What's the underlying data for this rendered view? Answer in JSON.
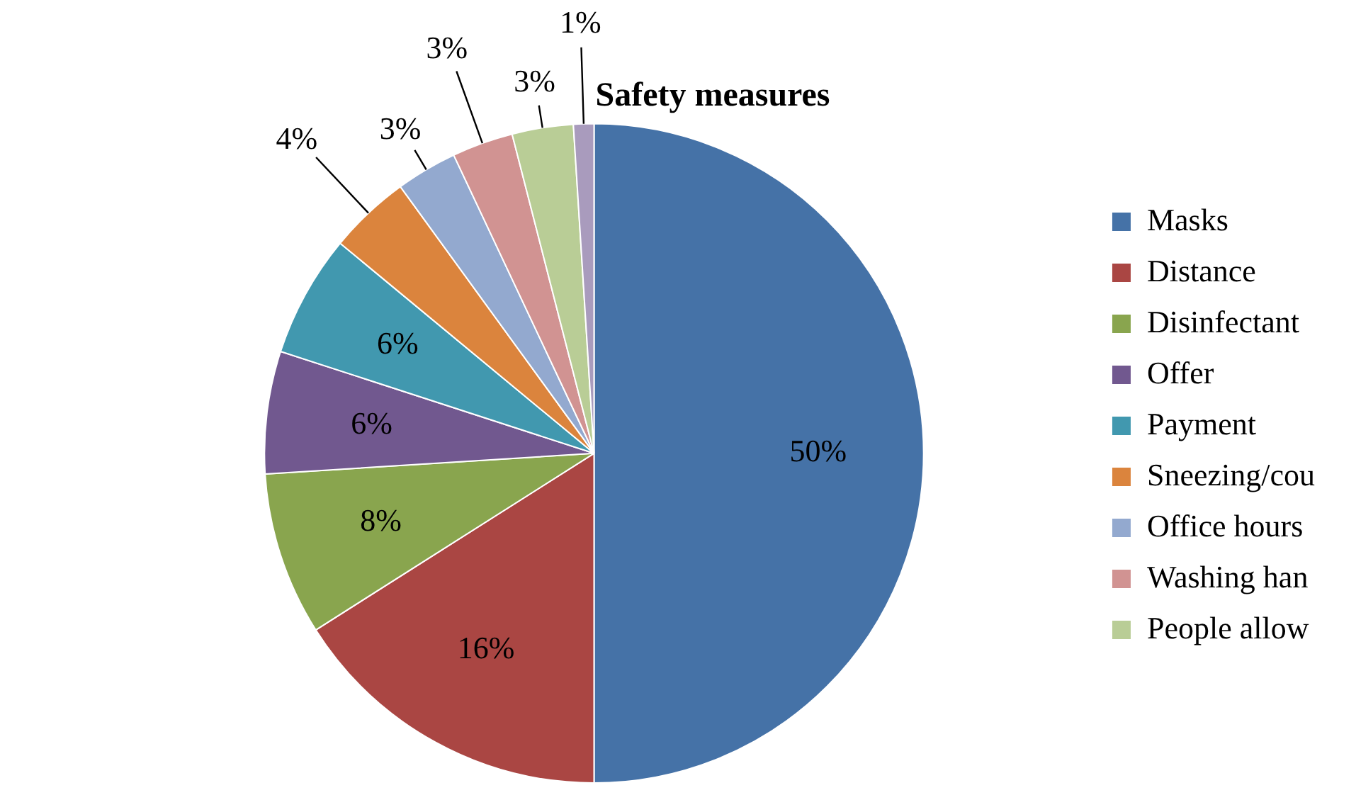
{
  "chart_data": {
    "type": "pie",
    "title": "Safety measures",
    "categories": [
      "Masks",
      "Distance",
      "Disinfectant",
      "Offer",
      "Payment",
      "Sneezing/cou",
      "Office hours",
      "Washing han",
      "People allow",
      null
    ],
    "values": [
      50,
      16,
      8,
      6,
      6,
      4,
      3,
      3,
      3,
      1
    ],
    "value_labels": [
      "50%",
      "16%",
      "8%",
      "6%",
      "6%",
      "4%",
      "3%",
      "3%",
      "3%",
      "1%"
    ],
    "colors": [
      "#4572a7",
      "#aa4643",
      "#89a54e",
      "#71588f",
      "#4198af",
      "#db843d",
      "#93a9cf",
      "#d19392",
      "#b9cd96",
      "#a99bbd"
    ],
    "legend": "right"
  }
}
